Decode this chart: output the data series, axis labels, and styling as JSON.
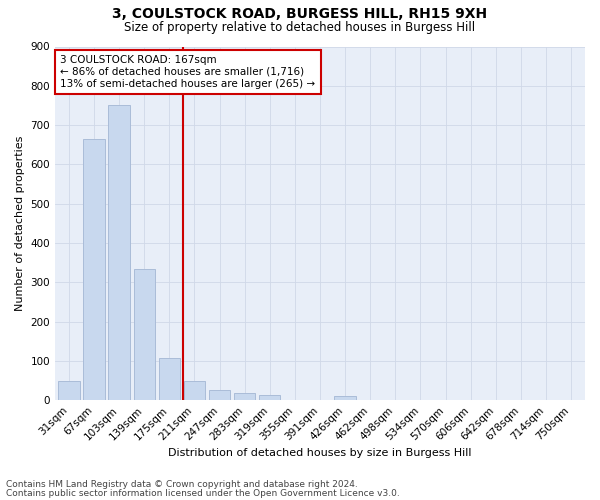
{
  "title": "3, COULSTOCK ROAD, BURGESS HILL, RH15 9XH",
  "subtitle": "Size of property relative to detached houses in Burgess Hill",
  "xlabel": "Distribution of detached houses by size in Burgess Hill",
  "ylabel": "Number of detached properties",
  "footnote1": "Contains HM Land Registry data © Crown copyright and database right 2024.",
  "footnote2": "Contains public sector information licensed under the Open Government Licence v3.0.",
  "categories": [
    "31sqm",
    "67sqm",
    "103sqm",
    "139sqm",
    "175sqm",
    "211sqm",
    "247sqm",
    "283sqm",
    "319sqm",
    "355sqm",
    "391sqm",
    "426sqm",
    "462sqm",
    "498sqm",
    "534sqm",
    "570sqm",
    "606sqm",
    "642sqm",
    "678sqm",
    "714sqm",
    "750sqm"
  ],
  "values": [
    50,
    665,
    750,
    335,
    108,
    50,
    25,
    18,
    14,
    0,
    0,
    10,
    0,
    0,
    0,
    0,
    0,
    0,
    0,
    0,
    0
  ],
  "bar_color": "#c8d8ee",
  "bar_edge_color": "#aabcd8",
  "grid_color": "#d0d8e8",
  "background_color": "#e8eef8",
  "vline_color": "#cc0000",
  "vline_pos": 4.55,
  "annotation_text": "3 COULSTOCK ROAD: 167sqm\n← 86% of detached houses are smaller (1,716)\n13% of semi-detached houses are larger (265) →",
  "annotation_box_color": "#cc0000",
  "ylim": [
    0,
    900
  ],
  "yticks": [
    0,
    100,
    200,
    300,
    400,
    500,
    600,
    700,
    800,
    900
  ],
  "title_fontsize": 10,
  "subtitle_fontsize": 8.5,
  "ylabel_fontsize": 8,
  "xlabel_fontsize": 8,
  "tick_fontsize": 7.5,
  "annot_fontsize": 7.5,
  "footnote_fontsize": 6.5
}
